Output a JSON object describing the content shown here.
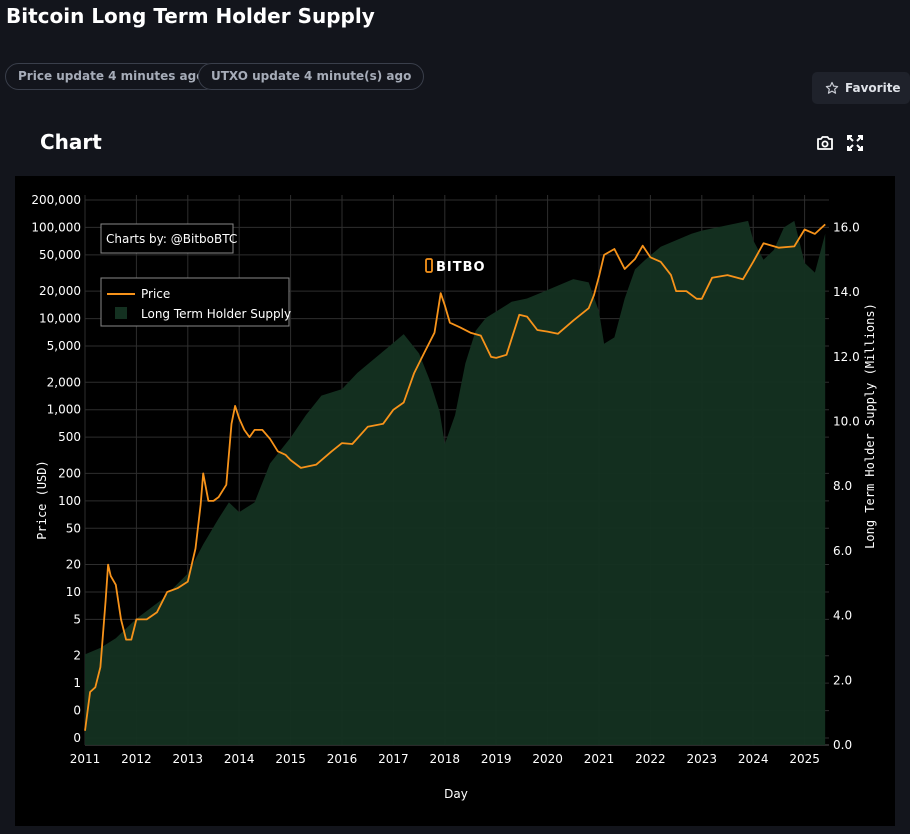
{
  "page": {
    "title": "Bitcoin Long Term Holder Supply",
    "price_update": "Price update 4 minutes ago",
    "utxo_update": "UTXO update 4 minute(s) ago",
    "favorite_label": "Favorite",
    "card_title": "Chart"
  },
  "icons": {
    "favorite": "star-outline-icon",
    "screenshot": "camera-icon",
    "fullscreen": "expand-icon"
  },
  "colors": {
    "background": "#13151c",
    "plot_background": "#000000",
    "price_line": "#f7931a",
    "supply_fill": "#143121"
  },
  "chart_data": {
    "type": "line",
    "xlabel": "Day",
    "y_left_label": "Price (USD)",
    "y_right_label": "Long Term Holder Supply (Millions)",
    "x_ticks": [
      "2011",
      "2012",
      "2013",
      "2014",
      "2015",
      "2016",
      "2017",
      "2018",
      "2019",
      "2020",
      "2021",
      "2022",
      "2023",
      "2024",
      "2025"
    ],
    "y_left_scale": "log",
    "y_left_ticks": [
      "200,000",
      "100,000",
      "50,000",
      "20,000",
      "10,000",
      "5,000",
      "2,000",
      "1,000",
      "500",
      "200",
      "100",
      "50",
      "20",
      "10",
      "5",
      "2",
      "1",
      "0",
      "0"
    ],
    "y_right_range": [
      0,
      17
    ],
    "y_right_ticks": [
      "0.0",
      "2.0",
      "4.0",
      "6.0",
      "8.0",
      "10.0",
      "12.0",
      "14.0",
      "16.0"
    ],
    "credit": "Charts by: @BitboBTC",
    "watermark": "BITBO",
    "grid": true,
    "legend_position": "top-left",
    "series": [
      {
        "name": "Price",
        "type": "line",
        "axis": "left",
        "x": [
          2011.0,
          2011.1,
          2011.2,
          2011.3,
          2011.4,
          2011.45,
          2011.5,
          2011.6,
          2011.7,
          2011.8,
          2011.9,
          2012.0,
          2012.2,
          2012.4,
          2012.6,
          2012.8,
          2013.0,
          2013.15,
          2013.25,
          2013.3,
          2013.4,
          2013.5,
          2013.6,
          2013.75,
          2013.85,
          2013.92,
          2014.0,
          2014.1,
          2014.2,
          2014.3,
          2014.45,
          2014.6,
          2014.75,
          2014.9,
          2015.0,
          2015.2,
          2015.5,
          2015.8,
          2016.0,
          2016.2,
          2016.5,
          2016.8,
          2017.0,
          2017.2,
          2017.4,
          2017.6,
          2017.8,
          2017.92,
          2018.0,
          2018.1,
          2018.3,
          2018.5,
          2018.7,
          2018.9,
          2019.0,
          2019.2,
          2019.45,
          2019.6,
          2019.8,
          2020.0,
          2020.2,
          2020.5,
          2020.8,
          2020.9,
          2021.0,
          2021.1,
          2021.3,
          2021.5,
          2021.7,
          2021.85,
          2022.0,
          2022.2,
          2022.4,
          2022.5,
          2022.7,
          2022.9,
          2023.0,
          2023.2,
          2023.5,
          2023.8,
          2024.0,
          2024.2,
          2024.5,
          2024.8,
          2025.0,
          2025.2,
          2025.4
        ],
        "y": [
          0.3,
          0.8,
          0.9,
          1.5,
          8,
          20,
          15,
          12,
          5,
          3,
          3,
          5,
          5,
          6,
          10,
          11,
          13,
          30,
          90,
          200,
          100,
          100,
          110,
          150,
          700,
          1100,
          800,
          600,
          500,
          600,
          600,
          480,
          350,
          320,
          280,
          230,
          250,
          350,
          430,
          420,
          650,
          700,
          1000,
          1200,
          2500,
          4200,
          7000,
          19000,
          14000,
          9000,
          8000,
          7000,
          6500,
          3800,
          3700,
          4000,
          11000,
          10500,
          7500,
          7200,
          6800,
          9500,
          13000,
          18000,
          29000,
          50000,
          58000,
          35000,
          45000,
          63000,
          47000,
          42000,
          30000,
          20000,
          20000,
          16500,
          16500,
          28000,
          30000,
          27000,
          42000,
          67000,
          60000,
          62000,
          95000,
          85000,
          108000
        ]
      },
      {
        "name": "Long Term Holder Supply",
        "type": "area",
        "axis": "right",
        "x": [
          2011.0,
          2011.3,
          2011.6,
          2012.0,
          2012.5,
          2013.0,
          2013.3,
          2013.6,
          2013.8,
          2014.0,
          2014.3,
          2014.6,
          2015.0,
          2015.3,
          2015.6,
          2016.0,
          2016.3,
          2016.6,
          2016.9,
          2017.2,
          2017.5,
          2017.7,
          2017.9,
          2018.0,
          2018.2,
          2018.4,
          2018.6,
          2018.8,
          2019.0,
          2019.3,
          2019.6,
          2019.9,
          2020.2,
          2020.5,
          2020.8,
          2021.0,
          2021.1,
          2021.3,
          2021.5,
          2021.7,
          2021.9,
          2022.2,
          2022.5,
          2022.8,
          2023.0,
          2023.3,
          2023.6,
          2023.9,
          2024.0,
          2024.2,
          2024.4,
          2024.6,
          2024.8,
          2025.0,
          2025.2,
          2025.4
        ],
        "y": [
          2.8,
          3.0,
          3.3,
          3.9,
          4.5,
          5.3,
          6.2,
          7.0,
          7.5,
          7.2,
          7.5,
          8.7,
          9.5,
          10.2,
          10.8,
          11.0,
          11.5,
          11.9,
          12.3,
          12.7,
          12.1,
          11.3,
          10.3,
          9.3,
          10.2,
          11.8,
          12.8,
          13.2,
          13.4,
          13.7,
          13.8,
          14.0,
          14.2,
          14.4,
          14.3,
          13.4,
          12.4,
          12.6,
          13.8,
          14.7,
          15.0,
          15.4,
          15.6,
          15.8,
          15.9,
          16.0,
          16.1,
          16.2,
          15.6,
          15.0,
          15.3,
          16.0,
          16.2,
          14.9,
          14.6,
          15.8
        ]
      }
    ]
  }
}
